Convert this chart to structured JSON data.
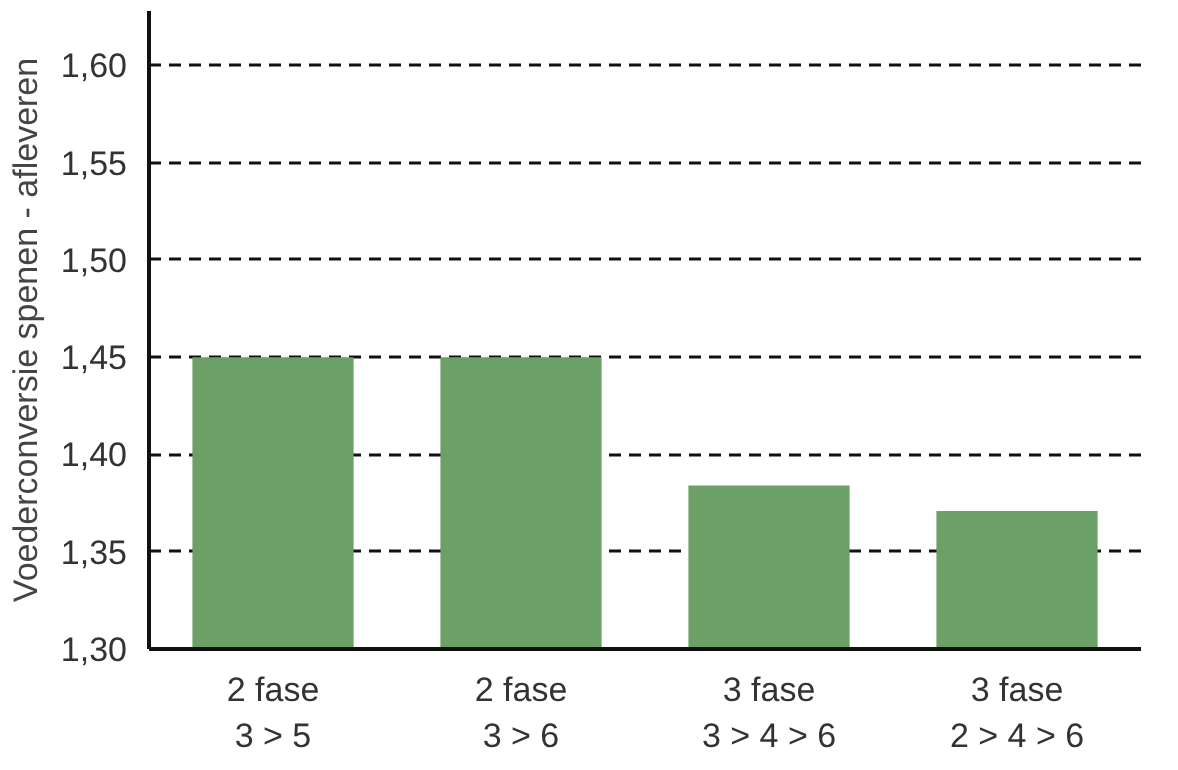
{
  "chart_data": {
    "type": "bar",
    "ylabel": "Voederconversie spenen - afleveren",
    "categories": [
      "2 fase\n3 > 5",
      "2 fase\n3 > 6",
      "3 fase\n3 > 4 > 6",
      "3 fase\n2 > 4 > 6"
    ],
    "values": [
      1.45,
      1.45,
      1.384,
      1.371
    ],
    "color": "#6ca066",
    "ylim": [
      1.3,
      1.628
    ],
    "yticks": [
      {
        "value": 1.3,
        "label": "1,30"
      },
      {
        "value": 1.35,
        "label": "1,35"
      },
      {
        "value": 1.4,
        "label": "1,40"
      },
      {
        "value": 1.45,
        "label": "1,45"
      },
      {
        "value": 1.5,
        "label": "1,50"
      },
      {
        "value": 1.55,
        "label": "1,55"
      },
      {
        "value": 1.6,
        "label": "1,60"
      }
    ],
    "grid": "y"
  }
}
